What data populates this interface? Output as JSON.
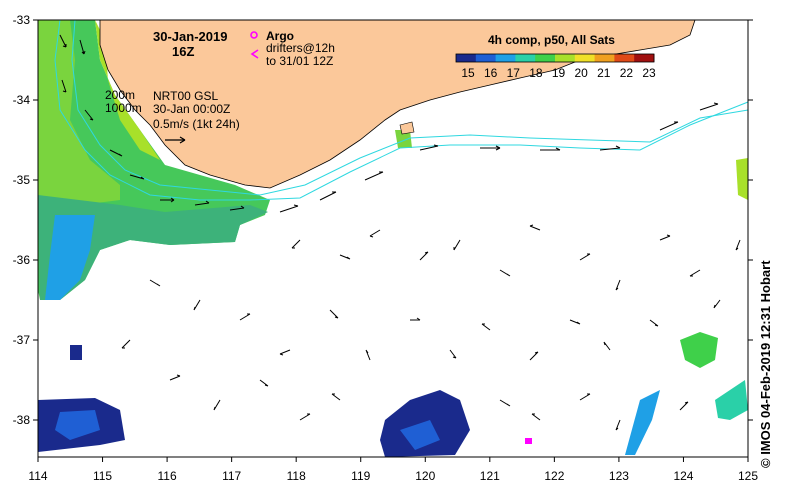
{
  "map": {
    "date": "30-Jan-2019",
    "hour": "16Z",
    "legend": {
      "argo_label": "Argo",
      "drifters_line1": "drifters@12h",
      "drifters_line2": "to 31/01 12Z",
      "argo_color": "#ff00ff"
    },
    "isobaths": {
      "a": "200m",
      "b": "1000m"
    },
    "currents": {
      "product": "NRT00 GSL",
      "time": "30-Jan 00:00Z",
      "scale": "0.5m/s (1kt 24h)"
    },
    "colorbar": {
      "title": "4h comp, p50, All Sats",
      "ticks": [
        "15",
        "16",
        "17",
        "18",
        "19",
        "20",
        "21",
        "22",
        "23"
      ],
      "colors": [
        "#1a2a8c",
        "#1f5fd4",
        "#1fa0e6",
        "#2ad0a8",
        "#3fd04a",
        "#a8e02a",
        "#f0e028",
        "#f0a020",
        "#e04a18",
        "#a01010"
      ]
    },
    "axes": {
      "lon_ticks": [
        "114",
        "115",
        "116",
        "117",
        "118",
        "119",
        "120",
        "121",
        "122",
        "123",
        "124",
        "125"
      ],
      "lat_ticks": [
        "-33",
        "-34",
        "-35",
        "-36",
        "-37",
        "-38"
      ]
    },
    "land_color": "#fbc89a",
    "credit": "© IMOS 04-Feb-2019 12:31 Hobart"
  }
}
